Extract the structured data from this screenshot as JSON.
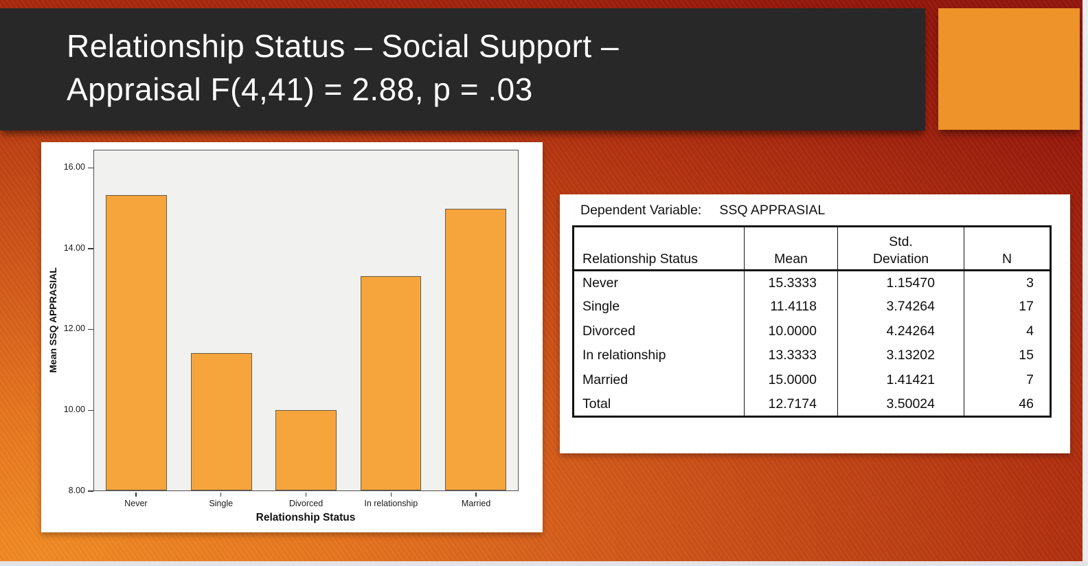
{
  "slide": {
    "title_line1": "Relationship Status – Social Support –",
    "title_line2": "Appraisal F(4,41) = 2.88, p = .03",
    "title_bar_color": "#282828",
    "accent_color": "#ED9329"
  },
  "chart_data": {
    "type": "bar",
    "title": "",
    "categories": [
      "Never",
      "Single",
      "Divorced",
      "In relationship",
      "Married"
    ],
    "values": [
      15.3333,
      11.4118,
      10.0,
      13.3333,
      15.0
    ],
    "xlabel": "Relationship Status",
    "ylabel": "Mean SSQ APPRASIAL",
    "ylim": [
      8,
      16.45
    ],
    "yticks": [
      8,
      10,
      12,
      14,
      16
    ],
    "ytick_labels": [
      "8.00",
      "10.00",
      "12.00",
      "14.00",
      "16.00"
    ],
    "bar_color": "#F6A53C",
    "bar_border_color": "#665b48",
    "plot_background": "#f1f1ef",
    "grid": false,
    "legend_position": "none"
  },
  "table": {
    "caption_label": "Dependent Variable:",
    "caption_value": "SSQ APPRASIAL",
    "columns": [
      "Relationship Status",
      "Mean",
      "Std. Deviation",
      "N"
    ],
    "rows": [
      {
        "label": "Never",
        "mean": "15.3333",
        "std_deviation": "1.15470",
        "n": "3"
      },
      {
        "label": "Single",
        "mean": "11.4118",
        "std_deviation": "3.74264",
        "n": "17"
      },
      {
        "label": "Divorced",
        "mean": "10.0000",
        "std_deviation": "4.24264",
        "n": "4"
      },
      {
        "label": "In relationship",
        "mean": "13.3333",
        "std_deviation": "3.13202",
        "n": "15"
      },
      {
        "label": "Married",
        "mean": "15.0000",
        "std_deviation": "1.41421",
        "n": "7"
      },
      {
        "label": "Total",
        "mean": "12.7174",
        "std_deviation": "3.50024",
        "n": "46"
      }
    ]
  }
}
